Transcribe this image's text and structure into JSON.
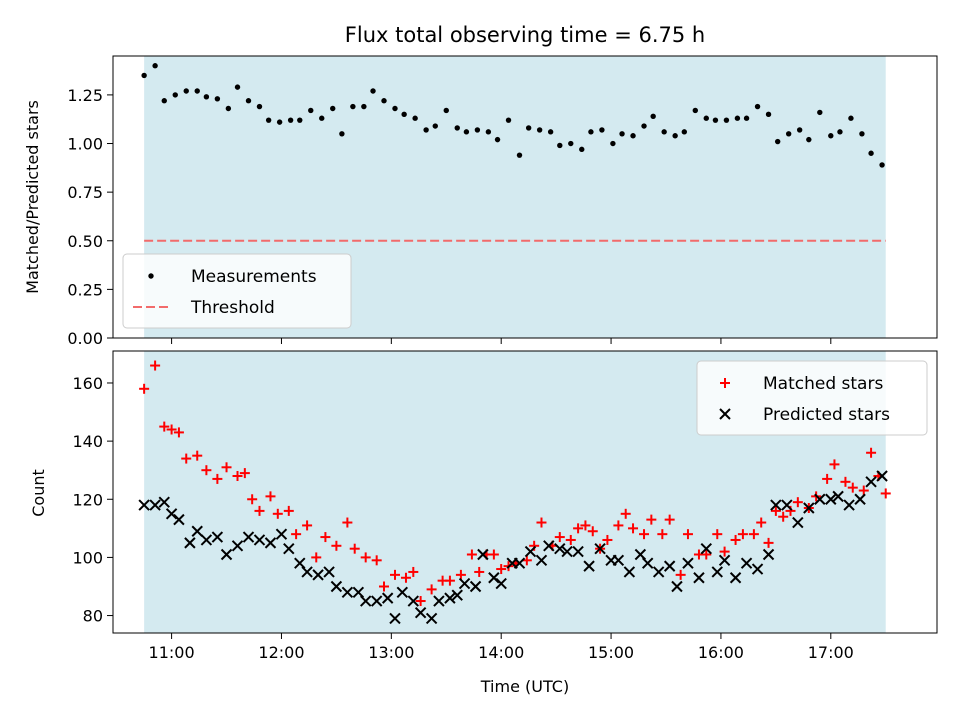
{
  "chart_data": [
    {
      "type": "scatter",
      "title": "Flux total observing time = 6.75 h",
      "xlabel": "",
      "ylabel": "Matched/Predicted stars",
      "xlim": [
        "10:28",
        "17:58"
      ],
      "ylim": [
        0,
        1.45
      ],
      "yticks": [
        0.0,
        0.25,
        0.5,
        0.75,
        1.0,
        1.25
      ],
      "ytick_labels": [
        "0.00",
        "0.25",
        "0.50",
        "0.75",
        "1.00",
        "1.25"
      ],
      "xticks": [
        "11:00",
        "12:00",
        "13:00",
        "14:00",
        "15:00",
        "16:00",
        "17:00"
      ],
      "shaded_span": [
        "10:45",
        "17:30"
      ],
      "shade_color": "#d4eaf0",
      "legend_position": "lower-left",
      "series": [
        {
          "name": "Measurements",
          "marker": "dot",
          "color": "#000000",
          "x": [
            "10:45",
            "10:51",
            "10:56",
            "11:02",
            "11:08",
            "11:14",
            "11:19",
            "11:25",
            "11:31",
            "11:36",
            "11:42",
            "11:48",
            "11:53",
            "11:59",
            "12:05",
            "12:10",
            "12:16",
            "12:22",
            "12:28",
            "12:33",
            "12:39",
            "12:45",
            "12:50",
            "12:56",
            "13:02",
            "13:07",
            "13:13",
            "13:19",
            "13:24",
            "13:30",
            "13:36",
            "13:41",
            "13:47",
            "13:53",
            "13:58",
            "14:04",
            "14:10",
            "14:15",
            "14:21",
            "14:27",
            "14:32",
            "14:38",
            "14:44",
            "14:49",
            "14:55",
            "15:01",
            "15:06",
            "15:12",
            "15:18",
            "15:23",
            "15:29",
            "15:35",
            "15:40",
            "15:46",
            "15:52",
            "15:57",
            "16:03",
            "16:09",
            "16:14",
            "16:20",
            "16:26",
            "16:31",
            "16:37",
            "16:43",
            "16:48",
            "16:54",
            "17:00",
            "17:05",
            "17:11",
            "17:17",
            "17:22",
            "17:28"
          ],
          "y": [
            1.35,
            1.4,
            1.22,
            1.25,
            1.27,
            1.27,
            1.24,
            1.23,
            1.18,
            1.29,
            1.22,
            1.19,
            1.12,
            1.11,
            1.12,
            1.12,
            1.17,
            1.13,
            1.18,
            1.05,
            1.19,
            1.19,
            1.27,
            1.22,
            1.18,
            1.15,
            1.13,
            1.07,
            1.09,
            1.17,
            1.08,
            1.06,
            1.07,
            1.06,
            1.02,
            1.12,
            0.94,
            1.08,
            1.07,
            1.06,
            0.99,
            1.0,
            0.97,
            1.06,
            1.07,
            1.0,
            1.05,
            1.04,
            1.09,
            1.14,
            1.06,
            1.04,
            1.06,
            1.17,
            1.13,
            1.12,
            1.12,
            1.13,
            1.13,
            1.19,
            1.15,
            1.01,
            1.05,
            1.07,
            1.02,
            1.16,
            1.04,
            1.06,
            1.13,
            1.05,
            0.95,
            0.89
          ]
        },
        {
          "name": "Threshold",
          "marker": "dashed-line",
          "color": "#f26b6b",
          "value": 0.5
        }
      ]
    },
    {
      "type": "scatter",
      "title": "",
      "xlabel": "Time (UTC)",
      "ylabel": "Count",
      "xlim": [
        "10:28",
        "17:58"
      ],
      "ylim": [
        74,
        171
      ],
      "yticks": [
        80,
        100,
        120,
        140,
        160
      ],
      "ytick_labels": [
        "80",
        "100",
        "120",
        "140",
        "160"
      ],
      "xticks": [
        "11:00",
        "12:00",
        "13:00",
        "14:00",
        "15:00",
        "16:00",
        "17:00"
      ],
      "shaded_span": [
        "10:45",
        "17:30"
      ],
      "shade_color": "#d4eaf0",
      "legend_position": "top-right",
      "series": [
        {
          "name": "Matched stars",
          "marker": "plus",
          "color": "#ff0000",
          "x": [
            "10:45",
            "10:51",
            "10:56",
            "11:00",
            "11:04",
            "11:08",
            "11:14",
            "11:19",
            "11:25",
            "11:30",
            "11:36",
            "11:40",
            "11:44",
            "11:48",
            "11:54",
            "11:58",
            "12:04",
            "12:08",
            "12:14",
            "12:19",
            "12:24",
            "12:30",
            "12:36",
            "12:40",
            "12:46",
            "12:52",
            "12:56",
            "13:02",
            "13:08",
            "13:12",
            "13:16",
            "13:22",
            "13:28",
            "13:32",
            "13:38",
            "13:44",
            "13:48",
            "13:52",
            "13:56",
            "14:00",
            "14:04",
            "14:08",
            "14:14",
            "14:18",
            "14:22",
            "14:28",
            "14:32",
            "14:38",
            "14:42",
            "14:46",
            "14:50",
            "14:54",
            "14:58",
            "15:04",
            "15:08",
            "15:12",
            "15:18",
            "15:22",
            "15:28",
            "15:32",
            "15:38",
            "15:42",
            "15:48",
            "15:52",
            "15:58",
            "16:02",
            "16:08",
            "16:12",
            "16:18",
            "16:22",
            "16:26",
            "16:30",
            "16:34",
            "16:38",
            "16:42",
            "16:48",
            "16:52",
            "16:58",
            "17:02",
            "17:08",
            "17:12",
            "17:18",
            "17:22",
            "17:26",
            "17:30"
          ],
          "y": [
            158,
            166,
            145,
            144,
            143,
            134,
            135,
            130,
            127,
            131,
            128,
            129,
            120,
            116,
            121,
            115,
            116,
            108,
            111,
            100,
            107,
            104,
            112,
            103,
            100,
            99,
            90,
            94,
            93,
            95,
            85,
            89,
            92,
            92,
            94,
            101,
            95,
            101,
            101,
            96,
            97,
            98,
            99,
            104,
            112,
            104,
            107,
            106,
            110,
            111,
            109,
            103,
            106,
            111,
            115,
            110,
            108,
            113,
            108,
            113,
            94,
            108,
            101,
            101,
            108,
            102,
            106,
            108,
            108,
            112,
            105,
            116,
            114,
            116,
            119,
            117,
            121,
            127,
            132,
            126,
            124,
            123,
            136,
            128,
            122
          ]
        },
        {
          "name": "Predicted stars",
          "marker": "x",
          "color": "#000000",
          "x": [
            "10:45",
            "10:51",
            "10:56",
            "11:00",
            "11:04",
            "11:10",
            "11:14",
            "11:19",
            "11:25",
            "11:30",
            "11:36",
            "11:42",
            "11:48",
            "11:54",
            "12:00",
            "12:04",
            "12:10",
            "12:14",
            "12:20",
            "12:26",
            "12:30",
            "12:36",
            "12:42",
            "12:46",
            "12:52",
            "12:58",
            "13:02",
            "13:06",
            "13:12",
            "13:16",
            "13:22",
            "13:26",
            "13:32",
            "13:36",
            "13:40",
            "13:46",
            "13:50",
            "13:56",
            "14:00",
            "14:06",
            "14:10",
            "14:16",
            "14:22",
            "14:26",
            "14:32",
            "14:36",
            "14:42",
            "14:48",
            "14:54",
            "15:00",
            "15:04",
            "15:10",
            "15:16",
            "15:20",
            "15:26",
            "15:32",
            "15:36",
            "15:42",
            "15:48",
            "15:52",
            "15:58",
            "16:02",
            "16:08",
            "16:14",
            "16:20",
            "16:26",
            "16:30",
            "16:36",
            "16:42",
            "16:48",
            "16:54",
            "17:00",
            "17:04",
            "17:10",
            "17:16",
            "17:22",
            "17:28"
          ],
          "y": [
            118,
            118,
            119,
            115,
            113,
            105,
            109,
            106,
            107,
            101,
            104,
            107,
            106,
            105,
            108,
            103,
            98,
            95,
            94,
            95,
            90,
            88,
            88,
            85,
            85,
            86,
            79,
            88,
            85,
            81,
            79,
            85,
            86,
            87,
            91,
            90,
            101,
            93,
            91,
            98,
            98,
            102,
            99,
            104,
            103,
            102,
            102,
            97,
            103,
            99,
            99,
            95,
            101,
            98,
            95,
            97,
            90,
            98,
            93,
            103,
            95,
            99,
            93,
            98,
            96,
            101,
            118,
            118,
            112,
            117,
            120,
            120,
            121,
            118,
            120,
            126,
            128
          ]
        }
      ]
    }
  ]
}
